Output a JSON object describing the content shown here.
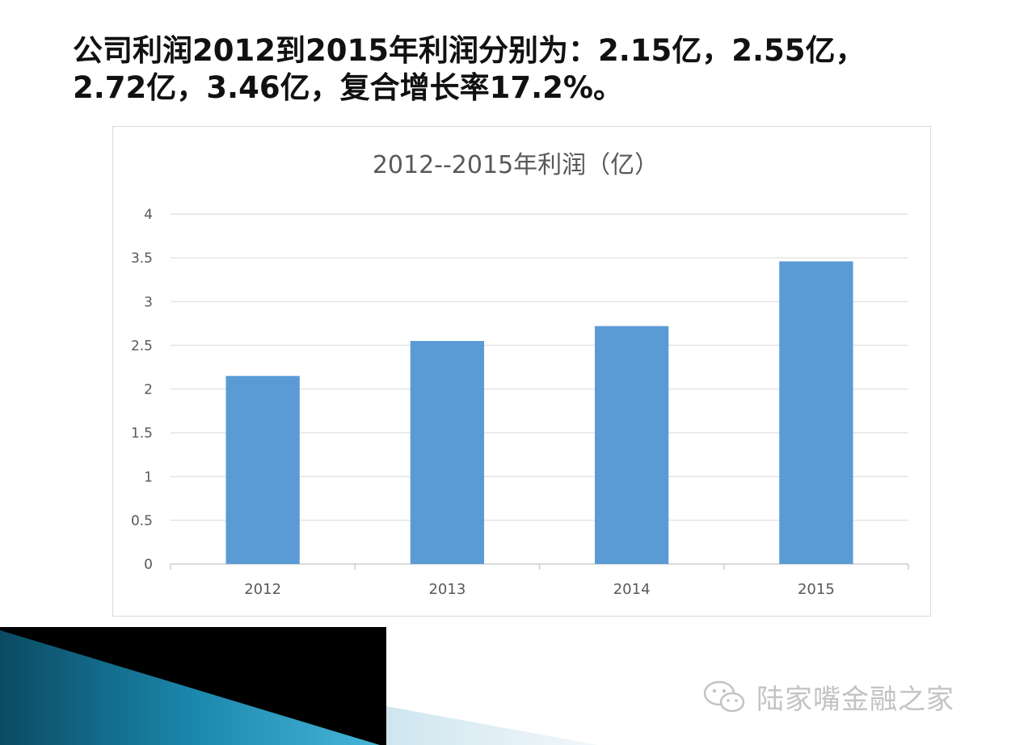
{
  "slide": {
    "headline_line1": "公司利润2012到2015年利润分别为：2.15亿，2.55亿，",
    "headline_line2": "2.72亿，3.46亿，复合增长率17.2%。"
  },
  "chart_data": {
    "type": "bar",
    "title": "2012--2015年利润（亿）",
    "categories": [
      "2012",
      "2013",
      "2014",
      "2015"
    ],
    "values": [
      2.15,
      2.55,
      2.72,
      3.46
    ],
    "ylim": [
      0,
      4
    ],
    "yticks": [
      "0",
      "0.5",
      "1",
      "1.5",
      "2",
      "2.5",
      "3",
      "3.5",
      "4"
    ],
    "xlabel": "",
    "ylabel": "",
    "grid": true,
    "legend": "none",
    "bar_color": "#5b9bd5"
  },
  "watermark": {
    "icon": "wechat-icon",
    "text": "陆家嘴金融之家"
  }
}
